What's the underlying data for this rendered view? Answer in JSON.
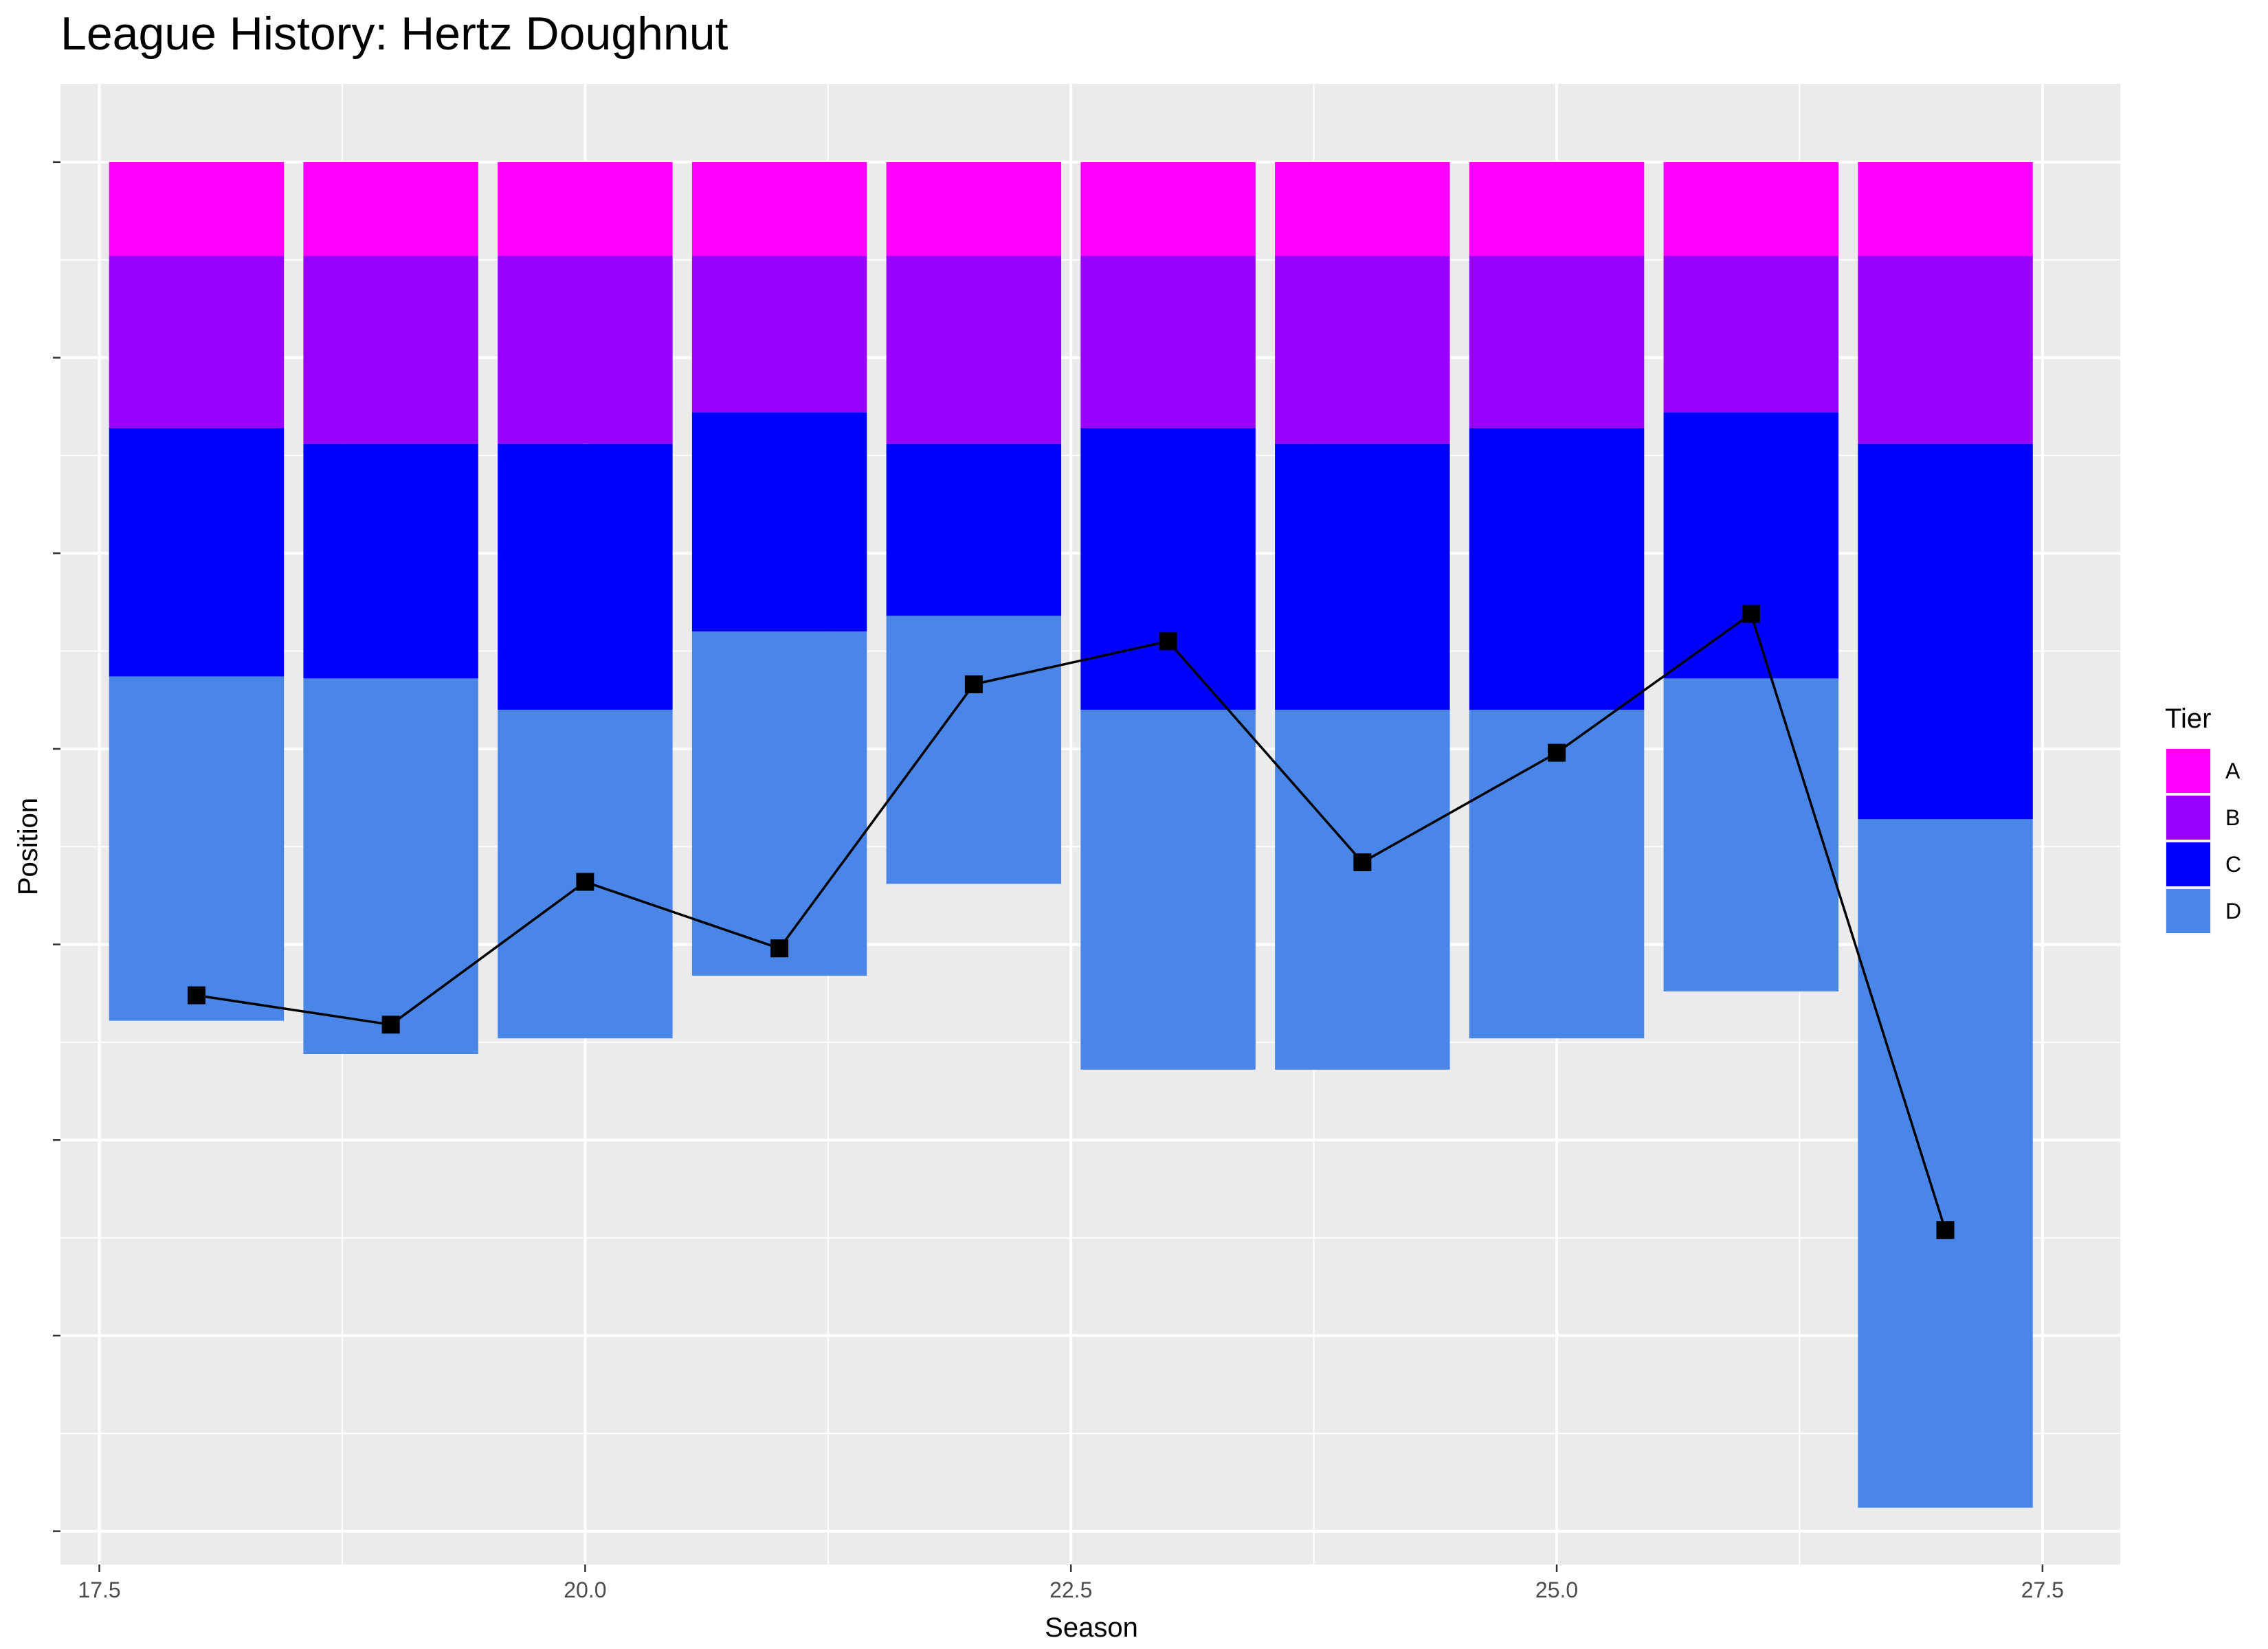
{
  "chart_data": {
    "type": "bar",
    "subtype": "stacked-tier-bands-with-line",
    "title": "League History: Hertz Doughnut",
    "xlabel": "Season",
    "ylabel": "Position",
    "xlim": [
      17.3,
      27.9
    ],
    "x_ticks": [
      17.5,
      20.0,
      22.5,
      25.0,
      27.5
    ],
    "x_tick_labels": [
      "17.5",
      "20.0",
      "22.5",
      "25.0",
      "27.5"
    ],
    "ylim": [
      -71.7,
      4
    ],
    "y_ticks": [
      0,
      -10,
      -20,
      -30,
      -40,
      -50,
      -60,
      -70
    ],
    "y_tick_labels_shown": false,
    "grid": true,
    "background": "#ebebeb",
    "legend": {
      "title": "Tier",
      "position": "right",
      "items": [
        {
          "label": "A",
          "color": "#ff00ff"
        },
        {
          "label": "B",
          "color": "#9900ff"
        },
        {
          "label": "C",
          "color": "#0000ff"
        },
        {
          "label": "D",
          "color": "#4a86e8"
        }
      ]
    },
    "seasons": [
      {
        "season": 18,
        "tiers": {
          "A": 4.8,
          "B": 8.8,
          "C": 12.7,
          "D": 17.6
        },
        "position": 42.6
      },
      {
        "season": 19,
        "tiers": {
          "A": 4.8,
          "B": 9.6,
          "C": 12.0,
          "D": 19.2
        },
        "position": 44.1
      },
      {
        "season": 20,
        "tiers": {
          "A": 4.8,
          "B": 9.6,
          "C": 13.6,
          "D": 16.8
        },
        "position": 36.8
      },
      {
        "season": 21,
        "tiers": {
          "A": 4.8,
          "B": 8.0,
          "C": 11.2,
          "D": 17.6
        },
        "position": 40.2
      },
      {
        "season": 22,
        "tiers": {
          "A": 4.8,
          "B": 9.6,
          "C": 8.8,
          "D": 13.7
        },
        "position": 26.7
      },
      {
        "season": 23,
        "tiers": {
          "A": 4.8,
          "B": 8.8,
          "C": 14.4,
          "D": 18.4
        },
        "position": 24.5
      },
      {
        "season": 24,
        "tiers": {
          "A": 4.8,
          "B": 9.6,
          "C": 13.6,
          "D": 18.4
        },
        "position": 35.8
      },
      {
        "season": 25,
        "tiers": {
          "A": 4.8,
          "B": 8.8,
          "C": 14.4,
          "D": 16.8
        },
        "position": 30.2
      },
      {
        "season": 26,
        "tiers": {
          "A": 4.8,
          "B": 8.0,
          "C": 13.6,
          "D": 16.0
        },
        "position": 23.1
      },
      {
        "season": 27,
        "tiers": {
          "A": 4.8,
          "B": 9.6,
          "C": 19.2,
          "D": 35.2
        },
        "position": 54.6
      }
    ],
    "line_color": "#000000",
    "marker": "square"
  }
}
